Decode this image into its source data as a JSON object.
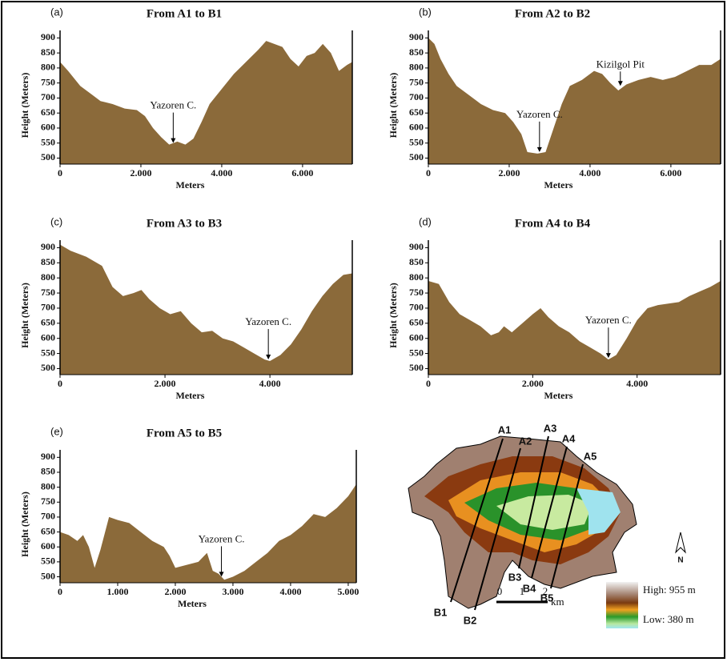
{
  "chart_data": [
    {
      "type": "area",
      "panel_label": "(a)",
      "title": "From A1 to B1",
      "xlabel": "Meters",
      "ylabel": "Height (Meters)",
      "color": "#8b6a3a",
      "x": [
        0,
        200,
        500,
        800,
        1000,
        1300,
        1600,
        1900,
        2100,
        2300,
        2500,
        2700,
        2900,
        3100,
        3300,
        3500,
        3700,
        4000,
        4300,
        4600,
        4900,
        5100,
        5300,
        5500,
        5700,
        5900,
        6100,
        6300,
        6500,
        6700,
        6900,
        7100,
        7230
      ],
      "values": [
        820,
        790,
        740,
        710,
        690,
        680,
        665,
        660,
        640,
        600,
        570,
        545,
        555,
        545,
        565,
        620,
        680,
        730,
        780,
        820,
        860,
        890,
        880,
        870,
        830,
        805,
        840,
        850,
        880,
        850,
        790,
        810,
        820
      ],
      "xlim": [
        0,
        7230
      ],
      "ylim": [
        480,
        925
      ],
      "xticks": [
        0,
        {
          "value": 2000,
          "label": "2.000"
        },
        {
          "value": 4000,
          "label": "4.000"
        },
        {
          "value": 6000,
          "label": "6.000"
        }
      ],
      "yticks": [
        500,
        550,
        600,
        650,
        700,
        750,
        800,
        850,
        900
      ],
      "annotations": [
        {
          "text": "Yazoren C.",
          "x": 2800,
          "y": 545
        }
      ]
    },
    {
      "type": "area",
      "panel_label": "(b)",
      "title": "From A2 to B2",
      "xlabel": "Meters",
      "ylabel": "Height (Meters)",
      "color": "#8b6a3a",
      "x": [
        0,
        150,
        300,
        500,
        700,
        1000,
        1300,
        1600,
        1900,
        2100,
        2300,
        2450,
        2700,
        2900,
        3100,
        3300,
        3500,
        3800,
        4100,
        4300,
        4500,
        4700,
        4900,
        5200,
        5500,
        5800,
        6100,
        6400,
        6700,
        7000,
        7230
      ],
      "values": [
        900,
        880,
        830,
        780,
        740,
        710,
        680,
        660,
        650,
        620,
        580,
        520,
        515,
        520,
        600,
        680,
        740,
        760,
        790,
        780,
        750,
        725,
        745,
        760,
        770,
        760,
        770,
        790,
        810,
        810,
        830
      ],
      "xlim": [
        0,
        7230
      ],
      "ylim": [
        480,
        925
      ],
      "xticks": [
        0,
        {
          "value": 2000,
          "label": "2.000"
        },
        {
          "value": 4000,
          "label": "4.000"
        },
        {
          "value": 6000,
          "label": "6.000"
        }
      ],
      "yticks": [
        500,
        550,
        600,
        650,
        700,
        750,
        800,
        850,
        900
      ],
      "annotations": [
        {
          "text": "Yazoren C.",
          "x": 2750,
          "y": 515
        },
        {
          "text": "Kizilgol Pit",
          "x": 4750,
          "y": 735
        }
      ]
    },
    {
      "type": "area",
      "panel_label": "(c)",
      "title": "From A3 to B3",
      "xlabel": "Meters",
      "ylabel": "Height (Meters)",
      "color": "#8b6a3a",
      "x": [
        0,
        200,
        500,
        800,
        1000,
        1200,
        1400,
        1550,
        1700,
        1900,
        2100,
        2300,
        2500,
        2700,
        2900,
        3100,
        3300,
        3500,
        3700,
        3900,
        4000,
        4200,
        4400,
        4600,
        4800,
        5000,
        5200,
        5400,
        5570
      ],
      "values": [
        910,
        890,
        870,
        840,
        770,
        740,
        750,
        760,
        730,
        700,
        680,
        690,
        650,
        620,
        625,
        600,
        590,
        570,
        550,
        530,
        525,
        545,
        580,
        630,
        690,
        740,
        780,
        810,
        815
      ],
      "xlim": [
        0,
        5570
      ],
      "ylim": [
        480,
        925
      ],
      "xticks": [
        0,
        {
          "value": 2000,
          "label": "2.000"
        },
        {
          "value": 4000,
          "label": "4.000"
        }
      ],
      "yticks": [
        500,
        550,
        600,
        650,
        700,
        750,
        800,
        850,
        900
      ],
      "annotations": [
        {
          "text": "Yazoren C.",
          "x": 3970,
          "y": 525
        }
      ]
    },
    {
      "type": "area",
      "panel_label": "(d)",
      "title": "From A4 to B4",
      "xlabel": "Meters",
      "ylabel": "Height (Meters)",
      "color": "#8b6a3a",
      "x": [
        0,
        200,
        400,
        600,
        800,
        1000,
        1200,
        1350,
        1450,
        1600,
        1800,
        2000,
        2150,
        2300,
        2500,
        2700,
        2900,
        3100,
        3300,
        3450,
        3600,
        3800,
        4000,
        4200,
        4400,
        4600,
        4800,
        5000,
        5200,
        5400,
        5600
      ],
      "values": [
        790,
        780,
        720,
        680,
        660,
        640,
        610,
        620,
        640,
        620,
        650,
        680,
        700,
        670,
        640,
        620,
        590,
        570,
        550,
        530,
        545,
        600,
        660,
        700,
        710,
        715,
        720,
        740,
        755,
        770,
        790
      ],
      "xlim": [
        0,
        5600
      ],
      "ylim": [
        480,
        925
      ],
      "xticks": [
        0,
        {
          "value": 2000,
          "label": "2.000"
        },
        {
          "value": 4000,
          "label": "4.000"
        }
      ],
      "yticks": [
        500,
        550,
        600,
        650,
        700,
        750,
        800,
        850,
        900
      ],
      "annotations": [
        {
          "text": "Yazoren C.",
          "x": 3450,
          "y": 530
        }
      ]
    },
    {
      "type": "area",
      "panel_label": "(e)",
      "title": "From A5 to B5",
      "xlabel": "Meters",
      "ylabel": "Height (Meters)",
      "color": "#8b6a3a",
      "x": [
        0,
        150,
        300,
        400,
        500,
        600,
        700,
        850,
        1000,
        1200,
        1400,
        1600,
        1800,
        1900,
        2000,
        2200,
        2400,
        2550,
        2650,
        2750,
        2850,
        3000,
        3200,
        3400,
        3600,
        3800,
        4000,
        4200,
        4400,
        4600,
        4800,
        5000,
        5140
      ],
      "values": [
        650,
        640,
        620,
        640,
        600,
        530,
        590,
        700,
        690,
        680,
        650,
        620,
        600,
        570,
        530,
        540,
        550,
        580,
        520,
        510,
        490,
        500,
        520,
        550,
        580,
        620,
        640,
        670,
        710,
        700,
        730,
        770,
        810
      ],
      "xlim": [
        0,
        5140
      ],
      "ylim": [
        480,
        925
      ],
      "xticks": [
        0,
        {
          "value": 1000,
          "label": "1.000"
        },
        {
          "value": 2000,
          "label": "2.000"
        },
        {
          "value": 3000,
          "label": "3.000"
        },
        {
          "value": 4000,
          "label": "4.000"
        },
        {
          "value": 5000,
          "label": "5.000"
        }
      ],
      "yticks": [
        500,
        550,
        600,
        650,
        700,
        750,
        800,
        850,
        900
      ],
      "annotations": [
        {
          "text": "Yazoren C.",
          "x": 2800,
          "y": 495
        }
      ]
    }
  ],
  "map": {
    "labels": [
      "A1",
      "A2",
      "A3",
      "A4",
      "A5",
      "B1",
      "B2",
      "B3",
      "B4",
      "B5"
    ],
    "legend_high": "High: 955 m",
    "legend_low": "Low: 380 m",
    "scale_ticks": [
      "0",
      "1",
      "2"
    ],
    "scale_unit": "km",
    "north": "N"
  }
}
